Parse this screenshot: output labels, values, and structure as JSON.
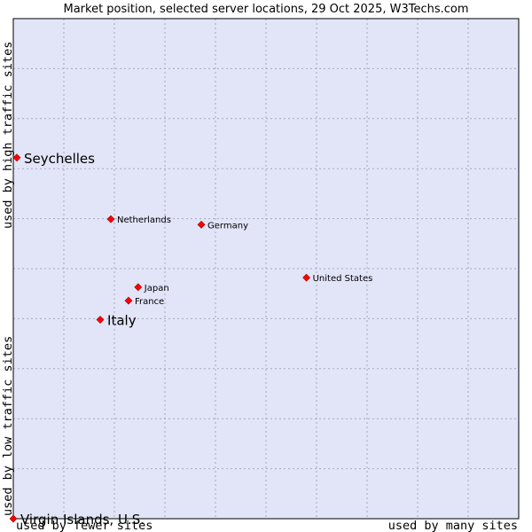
{
  "chart_data": {
    "type": "scatter",
    "title": "Market position, selected server locations, 29 Oct 2025, W3Techs.com",
    "xlabel_left": "used by fewer sites",
    "xlabel_right": "used by many sites",
    "ylabel_bottom": "used by low traffic sites",
    "ylabel_top": "used by high traffic sites",
    "xlim": [
      0,
      10
    ],
    "ylim": [
      0,
      10
    ],
    "grid": true,
    "colors": {
      "plot_background": "#e2e4f8",
      "grid": "#a8a8bc",
      "border": "#000000",
      "point": "#ff0000",
      "point_outline": "#990000"
    },
    "points": [
      {
        "label": "Seychelles",
        "x": 0.07,
        "y": 7.22,
        "emphasis": true
      },
      {
        "label": "Netherlands",
        "x": 1.93,
        "y": 5.99,
        "emphasis": false
      },
      {
        "label": "Germany",
        "x": 3.72,
        "y": 5.88,
        "emphasis": false
      },
      {
        "label": "United States",
        "x": 5.8,
        "y": 4.82,
        "emphasis": false
      },
      {
        "label": "Japan",
        "x": 2.47,
        "y": 4.63,
        "emphasis": false
      },
      {
        "label": "France",
        "x": 2.28,
        "y": 4.36,
        "emphasis": false
      },
      {
        "label": "Italy",
        "x": 1.72,
        "y": 3.98,
        "emphasis": true
      },
      {
        "label": "Virgin Islands, U.S.",
        "x": 0.0,
        "y": 0.0,
        "emphasis": true
      }
    ]
  }
}
